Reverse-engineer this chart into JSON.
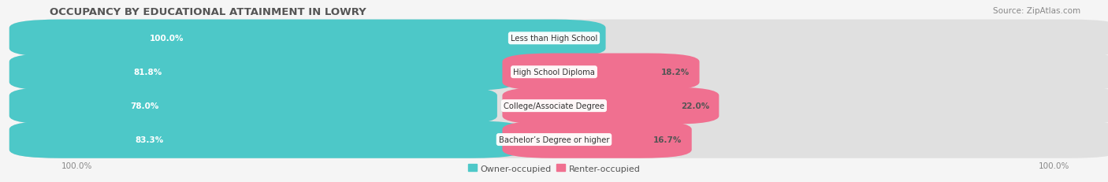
{
  "title": "OCCUPANCY BY EDUCATIONAL ATTAINMENT IN LOWRY",
  "source": "Source: ZipAtlas.com",
  "categories": [
    "Less than High School",
    "High School Diploma",
    "College/Associate Degree",
    "Bachelor’s Degree or higher"
  ],
  "owner_values": [
    100.0,
    81.8,
    78.0,
    83.3
  ],
  "renter_values": [
    0.0,
    18.2,
    22.0,
    16.7
  ],
  "owner_color": "#4DC8C8",
  "renter_color": "#F07090",
  "track_color": "#E0E0E0",
  "row_colors": [
    "#F0F0F0",
    "#E8E8E8"
  ],
  "background_color": "#F5F5F5",
  "title_fontsize": 9.5,
  "label_fontsize": 7.5,
  "tick_fontsize": 7.5,
  "source_fontsize": 7.5,
  "legend_fontsize": 8,
  "axis_label_left": "100.0%",
  "axis_label_right": "100.0%",
  "legend_labels": [
    "Owner-occupied",
    "Renter-occupied"
  ]
}
